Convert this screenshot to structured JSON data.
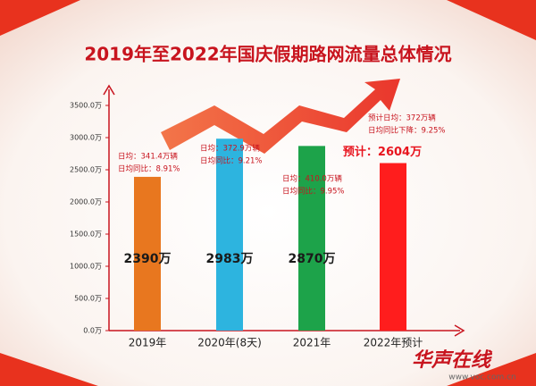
{
  "chart_data": {
    "type": "bar",
    "title": "2019年至2022年国庆假期路网流量总体情况",
    "categories": [
      "2019年",
      "2020年(8天)",
      "2021年",
      "2022年预计"
    ],
    "values": [
      2390,
      2983,
      2870,
      2604
    ],
    "value_labels": [
      "2390万",
      "2983万",
      "2870万",
      "预计：2604万"
    ],
    "colors": [
      "#e8771f",
      "#2db4df",
      "#1da34a",
      "#ff1d1d"
    ],
    "annotations": [
      [
        "日均：341.4万辆",
        "日均同比：8.91%"
      ],
      [
        "日均：372.9万辆",
        "日均同比：9.21%"
      ],
      [
        "日均：410.0万辆",
        "日均同比：9.95%"
      ],
      [
        "预计日均：372万辆",
        "日均同比下降：9.25%"
      ]
    ],
    "ylim": [
      0,
      3500
    ],
    "yticks": [
      {
        "value": 0,
        "label": "0.0万"
      },
      {
        "value": 500,
        "label": "500.0万"
      },
      {
        "value": 1000,
        "label": "1000.0万"
      },
      {
        "value": 1500,
        "label": "1500.0万"
      },
      {
        "value": 2000,
        "label": "2000.0万"
      },
      {
        "value": 2500,
        "label": "2500.0万"
      },
      {
        "value": 3000,
        "label": "3000.0万"
      },
      {
        "value": 3500,
        "label": "3500.0万"
      }
    ],
    "grid": false,
    "watermark": "华声在线",
    "watermark_url": "www.voc.com.cn"
  }
}
